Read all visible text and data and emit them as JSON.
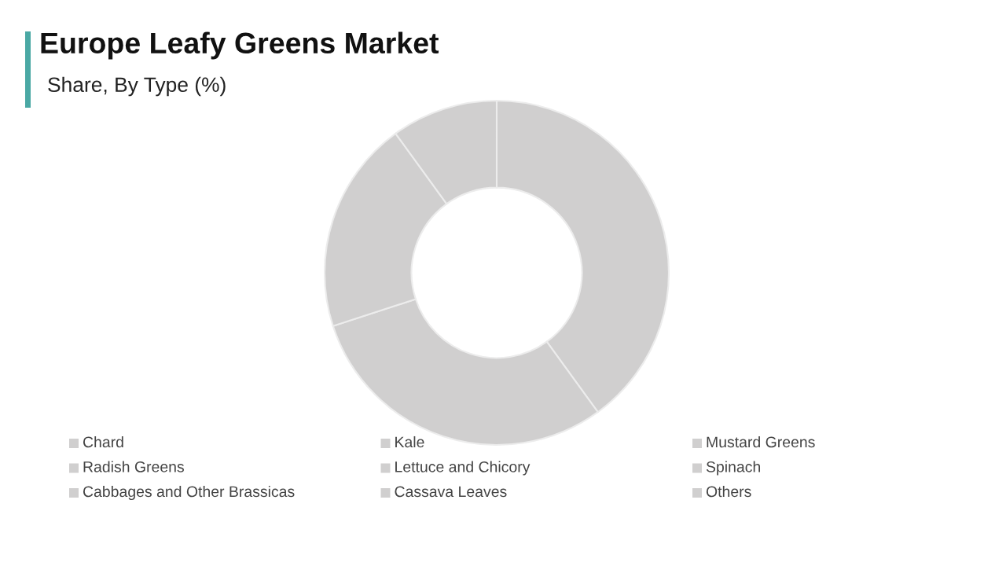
{
  "chart_data": {
    "type": "donut",
    "title": "Europe Leafy Greens Market",
    "subtitle": "Share, By Type (%)",
    "categories": [
      "Chard",
      "Kale",
      "Mustard Greens",
      "Radish Greens",
      "Lettuce and Chicory",
      "Spinach",
      "Cabbages and Other Brassicas",
      "Cassava Leaves",
      "Others"
    ],
    "values": [
      40,
      30,
      20,
      10,
      null,
      null,
      null,
      null,
      null
    ],
    "colors": [
      "#d0cfcf",
      "#d0cfcf",
      "#d0cfcf",
      "#d0cfcf",
      "#d0cfcf",
      "#d0cfcf",
      "#d0cfcf",
      "#d0cfcf",
      "#d0cfcf"
    ],
    "legend": "bottom"
  }
}
